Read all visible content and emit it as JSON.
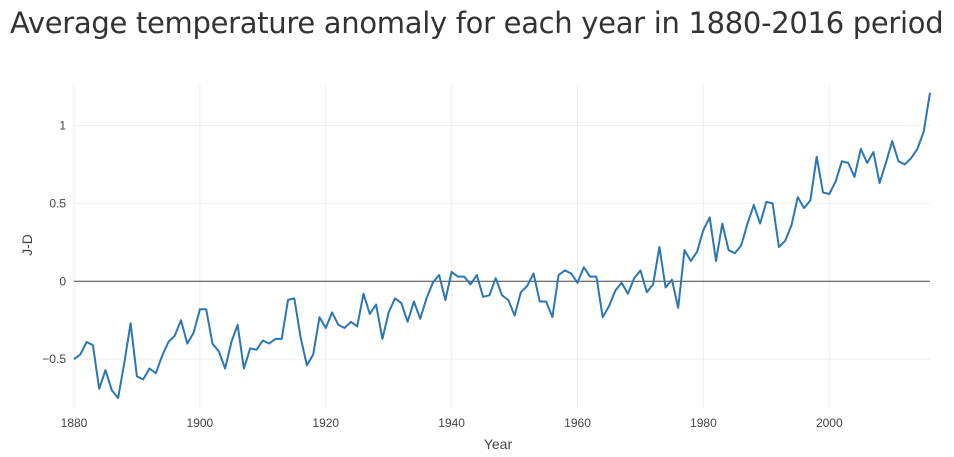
{
  "chart_data": {
    "type": "line",
    "title": "Average temperature anomaly for each year in 1880-2016 period",
    "xlabel": "Year",
    "ylabel": "J-D",
    "xlim": [
      1880,
      2016
    ],
    "ylim": [
      -0.82,
      1.26
    ],
    "x_ticks": [
      1880,
      1900,
      1920,
      1940,
      1960,
      1980,
      2000
    ],
    "y_ticks": [
      -0.5,
      0,
      0.5,
      1
    ],
    "y_tick_labels": [
      "−0.5",
      "0",
      "0.5",
      "1"
    ],
    "grid": true,
    "zero_line": true,
    "line_color": "#2a77b4",
    "series": [
      {
        "x": [
          1880,
          1881,
          1882,
          1883,
          1884,
          1885,
          1886,
          1887,
          1888,
          1889,
          1890,
          1891,
          1892,
          1893,
          1894,
          1895,
          1896,
          1897,
          1898,
          1899,
          1900,
          1901,
          1902,
          1903,
          1904,
          1905,
          1906,
          1907,
          1908,
          1909,
          1910,
          1911,
          1912,
          1913,
          1914,
          1915,
          1916,
          1917,
          1918,
          1919,
          1920,
          1921,
          1922,
          1923,
          1924,
          1925,
          1926,
          1927,
          1928,
          1929,
          1930,
          1931,
          1932,
          1933,
          1934,
          1935,
          1936,
          1937,
          1938,
          1939,
          1940,
          1941,
          1942,
          1943,
          1944,
          1945,
          1946,
          1947,
          1948,
          1949,
          1950,
          1951,
          1952,
          1953,
          1954,
          1955,
          1956,
          1957,
          1958,
          1959,
          1960,
          1961,
          1962,
          1963,
          1964,
          1965,
          1966,
          1967,
          1968,
          1969,
          1970,
          1971,
          1972,
          1973,
          1974,
          1975,
          1976,
          1977,
          1978,
          1979,
          1980,
          1981,
          1982,
          1983,
          1984,
          1985,
          1986,
          1987,
          1988,
          1989,
          1990,
          1991,
          1992,
          1993,
          1994,
          1995,
          1996,
          1997,
          1998,
          1999,
          2000,
          2001,
          2002,
          2003,
          2004,
          2005,
          2006,
          2007,
          2008,
          2009,
          2010,
          2011,
          2012,
          2013,
          2014,
          2015,
          2016
        ],
        "values": [
          -0.5,
          -0.47,
          -0.39,
          -0.41,
          -0.69,
          -0.57,
          -0.7,
          -0.75,
          -0.52,
          -0.27,
          -0.61,
          -0.63,
          -0.56,
          -0.59,
          -0.48,
          -0.39,
          -0.35,
          -0.25,
          -0.4,
          -0.33,
          -0.18,
          -0.18,
          -0.4,
          -0.45,
          -0.56,
          -0.39,
          -0.28,
          -0.56,
          -0.43,
          -0.44,
          -0.38,
          -0.4,
          -0.37,
          -0.37,
          -0.12,
          -0.11,
          -0.36,
          -0.54,
          -0.47,
          -0.23,
          -0.3,
          -0.2,
          -0.28,
          -0.3,
          -0.26,
          -0.29,
          -0.08,
          -0.21,
          -0.15,
          -0.37,
          -0.2,
          -0.11,
          -0.14,
          -0.26,
          -0.13,
          -0.24,
          -0.11,
          -0.01,
          0.04,
          -0.12,
          0.06,
          0.03,
          0.03,
          -0.02,
          0.04,
          -0.1,
          -0.09,
          0.02,
          -0.09,
          -0.12,
          -0.22,
          -0.07,
          -0.03,
          0.05,
          -0.13,
          -0.13,
          -0.23,
          0.04,
          0.07,
          0.05,
          -0.01,
          0.09,
          0.03,
          0.03,
          -0.23,
          -0.16,
          -0.06,
          -0.01,
          -0.08,
          0.02,
          0.07,
          -0.07,
          -0.02,
          0.22,
          -0.04,
          0.01,
          -0.17,
          0.2,
          0.13,
          0.19,
          0.33,
          0.41,
          0.13,
          0.37,
          0.2,
          0.18,
          0.23,
          0.37,
          0.49,
          0.37,
          0.51,
          0.5,
          0.22,
          0.26,
          0.36,
          0.54,
          0.47,
          0.52,
          0.8,
          0.57,
          0.56,
          0.64,
          0.77,
          0.76,
          0.67,
          0.85,
          0.76,
          0.83,
          0.63,
          0.76,
          0.9,
          0.77,
          0.75,
          0.79,
          0.85,
          0.96,
          1.21
        ]
      }
    ]
  }
}
